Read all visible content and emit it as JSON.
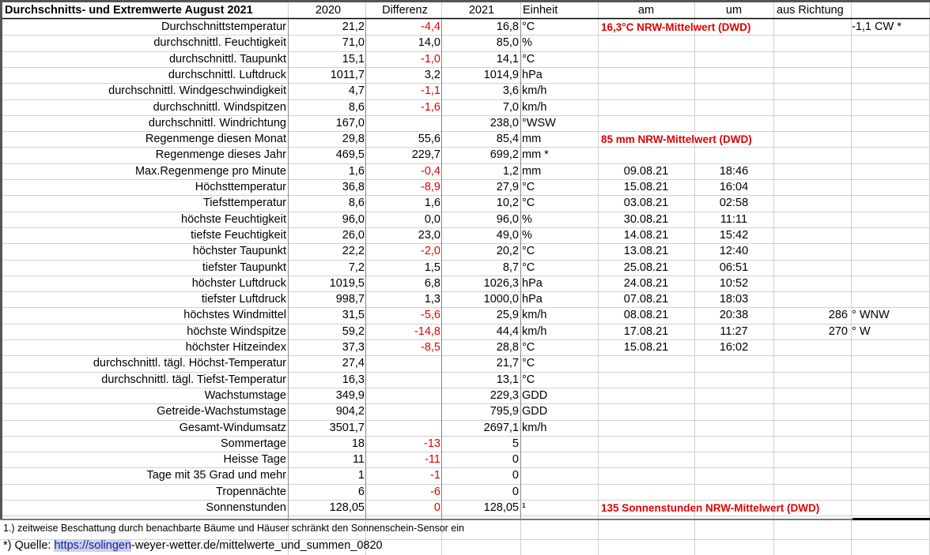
{
  "header": {
    "title": "Durchschnitts- und Extremwerte August 2021",
    "col_2020": "2020",
    "col_diff": "Differenz",
    "col_2021": "2021",
    "col_unit": "Einheit",
    "col_am": "am",
    "col_um": "um",
    "col_dir": "aus Richtung"
  },
  "rows": [
    {
      "label": "Durchschnittstemperatur",
      "v2020": "21,2",
      "diff": "-4,4",
      "neg": true,
      "v2021": "16,8",
      "unit": "°C",
      "am": "",
      "um": "",
      "note": "16,3°C NRW-Mittelwert (DWD)",
      "dirv": "",
      "dirt": "-1,1 CW  *"
    },
    {
      "label": "durchschnittl. Feuchtigkeit",
      "v2020": "71,0",
      "diff": "14,0",
      "neg": false,
      "v2021": "85,0",
      "unit": "%",
      "am": "",
      "um": "",
      "note": "",
      "dirv": "",
      "dirt": ""
    },
    {
      "label": "durchschnittl. Taupunkt",
      "v2020": "15,1",
      "diff": "-1,0",
      "neg": true,
      "v2021": "14,1",
      "unit": "°C",
      "am": "",
      "um": "",
      "note": "",
      "dirv": "",
      "dirt": ""
    },
    {
      "label": "durchschnittl. Luftdruck",
      "v2020": "1011,7",
      "diff": "3,2",
      "neg": false,
      "v2021": "1014,9",
      "unit": " hPa",
      "am": "",
      "um": "",
      "note": "",
      "dirv": "",
      "dirt": ""
    },
    {
      "label": "durchschnittl. Windgeschwindigkeit",
      "v2020": "4,7",
      "diff": "-1,1",
      "neg": true,
      "v2021": "3,6",
      "unit": "km/h",
      "am": "",
      "um": "",
      "note": "",
      "dirv": "",
      "dirt": ""
    },
    {
      "label": "durchschnittl. Windspitzen",
      "v2020": "8,6",
      "diff": "-1,6",
      "neg": true,
      "v2021": "7,0",
      "unit": "km/h",
      "am": "",
      "um": "",
      "note": "",
      "dirv": "",
      "dirt": ""
    },
    {
      "label": "durchschnittl. Windrichtung",
      "v2020": "167,0",
      "diff": "",
      "neg": false,
      "v2021": "238,0",
      "unit": "°WSW",
      "am": "",
      "um": "",
      "note": "",
      "dirv": "",
      "dirt": ""
    },
    {
      "label": "Regenmenge diesen Monat",
      "v2020": "29,8",
      "diff": "55,6",
      "neg": false,
      "v2021": "85,4",
      "unit": "mm",
      "am": "",
      "um": "",
      "note": "85 mm NRW-Mittelwert (DWD)",
      "dirv": "",
      "dirt": ""
    },
    {
      "label": "Regenmenge dieses Jahr",
      "v2020": "469,5",
      "diff": "229,7",
      "neg": false,
      "v2021": "699,2",
      "unit": "mm     *",
      "am": "",
      "um": "",
      "note": "",
      "dirv": "",
      "dirt": ""
    },
    {
      "label": "Max.Regenmenge pro Minute",
      "v2020": "1,6",
      "diff": "-0,4",
      "neg": true,
      "v2021": "1,2",
      "unit": "mm",
      "am": "09.08.21",
      "um": "18:46",
      "note": "",
      "dirv": "",
      "dirt": ""
    },
    {
      "label": "Höchsttemperatur",
      "v2020": "36,8",
      "diff": "-8,9",
      "neg": true,
      "v2021": "27,9",
      "unit": "°C",
      "am": "15.08.21",
      "um": "16:04",
      "note": "",
      "dirv": "",
      "dirt": ""
    },
    {
      "label": "Tiefsttemperatur",
      "v2020": "8,6",
      "diff": "1,6",
      "neg": false,
      "v2021": "10,2",
      "unit": "°C",
      "am": "03.08.21",
      "um": "02:58",
      "note": "",
      "dirv": "",
      "dirt": ""
    },
    {
      "label": "höchste Feuchtigkeit",
      "v2020": "96,0",
      "diff": "0,0",
      "neg": false,
      "v2021": "96,0",
      "unit": "%",
      "am": "30.08.21",
      "um": "11:11",
      "note": "",
      "dirv": "",
      "dirt": ""
    },
    {
      "label": "tiefste Feuchtigkeit",
      "v2020": "26,0",
      "diff": "23,0",
      "neg": false,
      "v2021": "49,0",
      "unit": "%",
      "am": "14.08.21",
      "um": "15:42",
      "note": "",
      "dirv": "",
      "dirt": ""
    },
    {
      "label": "höchster Taupunkt",
      "v2020": "22,2",
      "diff": "-2,0",
      "neg": true,
      "v2021": "20,2",
      "unit": "°C",
      "am": "13.08.21",
      "um": "12:40",
      "note": "",
      "dirv": "",
      "dirt": ""
    },
    {
      "label": "tiefster Taupunkt",
      "v2020": "7,2",
      "diff": "1,5",
      "neg": false,
      "v2021": "8,7",
      "unit": "°C",
      "am": "25.08.21",
      "um": "06:51",
      "note": "",
      "dirv": "",
      "dirt": ""
    },
    {
      "label": "höchster Luftdruck",
      "v2020": "1019,5",
      "diff": "6,8",
      "neg": false,
      "v2021": "1026,3",
      "unit": "hPa",
      "am": "24.08.21",
      "um": "10:52",
      "note": "",
      "dirv": "",
      "dirt": ""
    },
    {
      "label": "tiefster Luftdruck",
      "v2020": "998,7",
      "diff": "1,3",
      "neg": false,
      "v2021": "1000,0",
      "unit": " hPa",
      "am": "07.08.21",
      "um": "18:03",
      "note": "",
      "dirv": "",
      "dirt": ""
    },
    {
      "label": "höchstes Windmittel",
      "v2020": "31,5",
      "diff": "-5,6",
      "neg": true,
      "v2021": "25,9",
      "unit": " km/h",
      "am": "08.08.21",
      "um": "20:38",
      "note": "",
      "dirv": "286",
      "dirt": "° WNW"
    },
    {
      "label": "höchste Windspitze",
      "v2020": "59,2",
      "diff": "-14,8",
      "neg": true,
      "v2021": "44,4",
      "unit": " km/h",
      "am": "17.08.21",
      "um": "11:27",
      "note": "",
      "dirv": "270",
      "dirt": "° W"
    },
    {
      "label": "höchster Hitzeindex",
      "v2020": "37,3",
      "diff": "-8,5",
      "neg": true,
      "v2021": "28,8",
      "unit": "°C",
      "am": "15.08.21",
      "um": "16:02",
      "note": "",
      "dirv": "",
      "dirt": ""
    },
    {
      "label": "durchschnittl. tägl. Höchst-Temperatur",
      "v2020": "27,4",
      "diff": "",
      "neg": false,
      "v2021": "21,7",
      "unit": "°C",
      "am": "",
      "um": "",
      "note": "",
      "dirv": "",
      "dirt": ""
    },
    {
      "label": "durchschnittl. tägl. Tiefst-Temperatur",
      "v2020": "16,3",
      "diff": "",
      "neg": false,
      "v2021": "13,1",
      "unit": "°C",
      "am": "",
      "um": "",
      "note": "",
      "dirv": "",
      "dirt": ""
    },
    {
      "label": "Wachstumstage",
      "v2020": "349,9",
      "diff": "",
      "neg": false,
      "v2021": "229,3",
      "unit": " GDD",
      "am": "",
      "um": "",
      "note": "",
      "dirv": "",
      "dirt": ""
    },
    {
      "label": "Getreide-Wachstumstage",
      "v2020": "904,2",
      "diff": "",
      "neg": false,
      "v2021": "795,9",
      "unit": " GDD",
      "am": "",
      "um": "",
      "note": "",
      "dirv": "",
      "dirt": ""
    },
    {
      "label": "Gesamt-Windumsatz",
      "v2020": "3501,7",
      "diff": "",
      "neg": false,
      "v2021": "2697,1",
      "unit": " km/h",
      "am": "",
      "um": "",
      "note": "",
      "dirv": "",
      "dirt": ""
    },
    {
      "label": "Sommertage",
      "v2020": "18",
      "diff": "-13",
      "neg": true,
      "v2021": "5",
      "unit": "",
      "am": "",
      "um": "",
      "note": "",
      "dirv": "",
      "dirt": ""
    },
    {
      "label": "Heisse Tage",
      "v2020": "11",
      "diff": "-11",
      "neg": true,
      "v2021": "0",
      "unit": "",
      "am": "",
      "um": "",
      "note": "",
      "dirv": "",
      "dirt": ""
    },
    {
      "label": "Tage mit 35 Grad und mehr",
      "v2020": "1",
      "diff": "-1",
      "neg": true,
      "v2021": "0",
      "unit": "",
      "am": "",
      "um": "",
      "note": "",
      "dirv": "",
      "dirt": ""
    },
    {
      "label": "Tropennächte",
      "v2020": "6",
      "diff": "-6",
      "neg": true,
      "v2021": "0",
      "unit": "",
      "am": "",
      "um": "",
      "note": "",
      "dirv": "",
      "dirt": ""
    },
    {
      "label": "Sonnenstunden",
      "v2020": "128,05",
      "diff": "0",
      "neg": true,
      "v2021": "128,05",
      "unit": "¹",
      "am": "",
      "um": "",
      "note": "135 Sonnenstunden NRW-Mittelwert (DWD)",
      "dirv": "",
      "dirt": ""
    }
  ],
  "footnotes": {
    "f1": "1.) zeitweise Beschattung durch benachbarte Bäume und Häuser schränkt den Sonnenschein-Sensor ein",
    "f2_prefix": "*) Quelle: ",
    "f2_link": "https://solingen",
    "f2_rest": "-weyer-wetter.de/mittelwerte_und_summen_0820"
  }
}
